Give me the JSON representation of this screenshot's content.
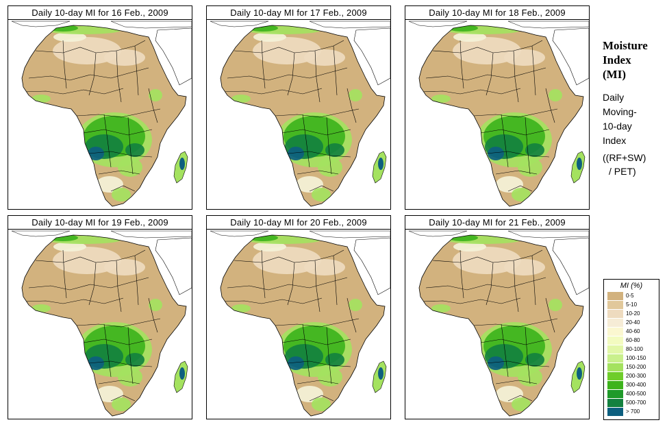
{
  "panels": [
    {
      "title": "Daily 10-day MI for 16 Feb., 2009"
    },
    {
      "title": "Daily 10-day MI for 17 Feb., 2009"
    },
    {
      "title": "Daily 10-day MI for 18 Feb., 2009"
    },
    {
      "title": "Daily 10-day MI for 19 Feb., 2009"
    },
    {
      "title": "Daily 10-day MI for 20 Feb., 2009"
    },
    {
      "title": "Daily 10-day MI for 21 Feb., 2009"
    }
  ],
  "side": {
    "title_line1": "Moisture",
    "title_line2": "Index",
    "title_line3": "(MI)",
    "desc_line1": "Daily",
    "desc_line2": "Moving-",
    "desc_line3": "10-day",
    "desc_line4": "Index",
    "formula_line1": "((RF+SW)",
    "formula_line2": "/ PET)"
  },
  "legend": {
    "title": "MI (%)",
    "items": [
      {
        "label": "0-5",
        "color": "#d2b27e"
      },
      {
        "label": "5-10",
        "color": "#e1c89b"
      },
      {
        "label": "10-20",
        "color": "#eedbbf"
      },
      {
        "label": "20-40",
        "color": "#f6ecd6"
      },
      {
        "label": "40-60",
        "color": "#fbf7d0"
      },
      {
        "label": "60-80",
        "color": "#f3fbc0"
      },
      {
        "label": "80-100",
        "color": "#e2f7a8"
      },
      {
        "label": "100-150",
        "color": "#c9f08c"
      },
      {
        "label": "150-200",
        "color": "#a4e25f"
      },
      {
        "label": "200-300",
        "color": "#6fcd2a"
      },
      {
        "label": "300-400",
        "color": "#3db31c"
      },
      {
        "label": "400-500",
        "color": "#1f9a2a"
      },
      {
        "label": "500-700",
        "color": "#14813f"
      },
      {
        "label": "> 700",
        "color": "#0d5f7f"
      }
    ]
  },
  "colors": {
    "dry": "#d2b27e",
    "dry_light": "#eedbbf",
    "pale": "#f4f2d8",
    "light_green": "#a4e25f",
    "green": "#3db31c",
    "dark_green": "#14813f",
    "teal": "#0d5f7f",
    "border": "#000000"
  }
}
